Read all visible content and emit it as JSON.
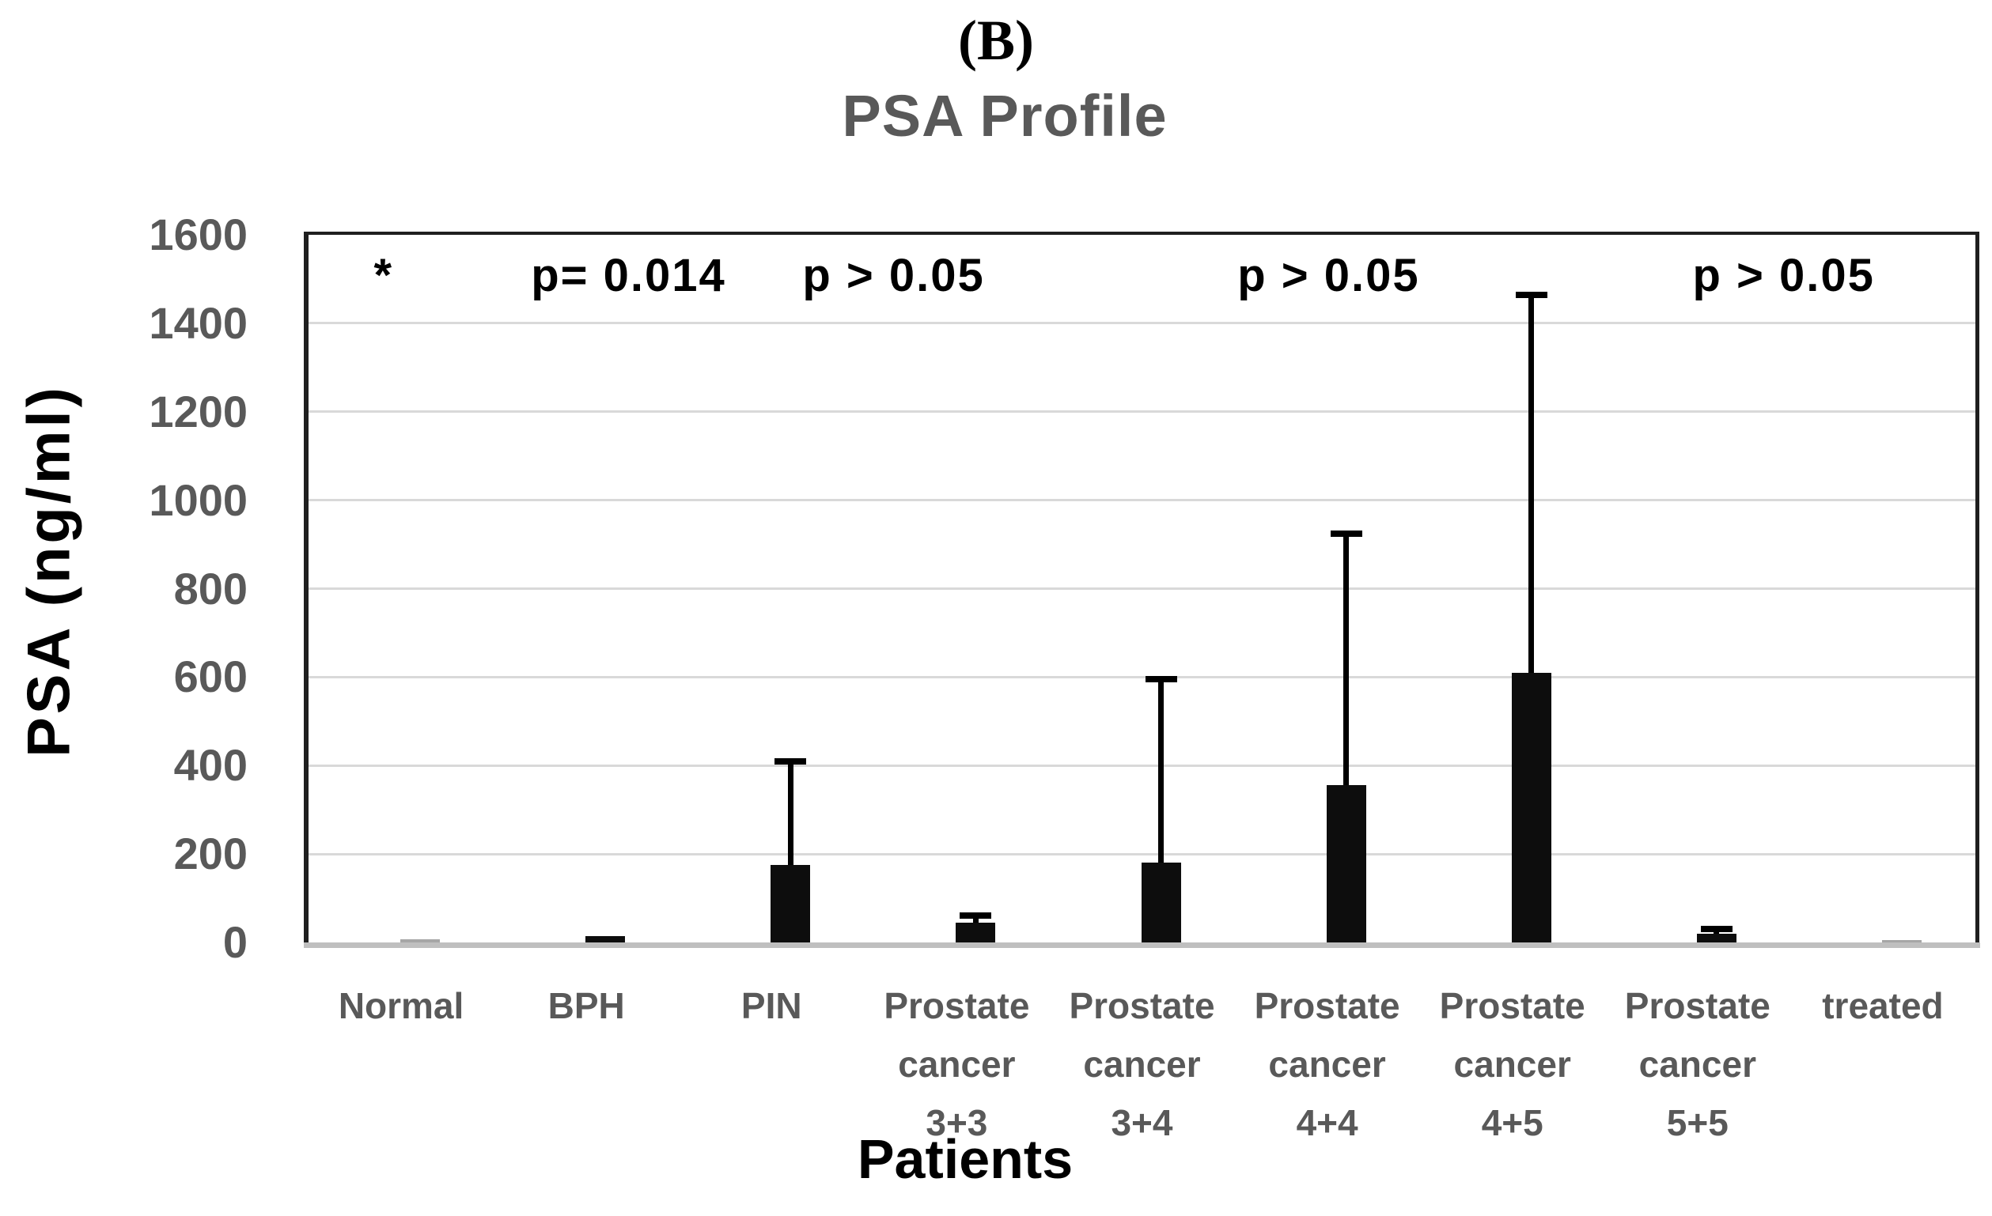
{
  "figure_label": "(B)",
  "chart_data": {
    "type": "bar",
    "title": "PSA Profile",
    "xlabel": "Patients",
    "ylabel": "PSA (ng/ml)",
    "ylim": [
      0,
      1600
    ],
    "ytick_step": 200,
    "grid": true,
    "legend": "none",
    "error_bars": "upper-only",
    "categories": [
      {
        "label_lines": [
          "Normal"
        ],
        "value": 8,
        "error_upper": null,
        "color": "#a6a6a6"
      },
      {
        "label_lines": [
          "BPH"
        ],
        "value": 14,
        "error_upper": null,
        "color": "#0d0d0d"
      },
      {
        "label_lines": [
          "PIN"
        ],
        "value": 175,
        "error_upper": 410,
        "color": "#0d0d0d"
      },
      {
        "label_lines": [
          "Prostate",
          "cancer",
          "3+3"
        ],
        "value": 45,
        "error_upper": 60,
        "color": "#0d0d0d"
      },
      {
        "label_lines": [
          "Prostate",
          "cancer",
          "3+4"
        ],
        "value": 180,
        "error_upper": 595,
        "color": "#0d0d0d"
      },
      {
        "label_lines": [
          "Prostate",
          "cancer",
          "4+4"
        ],
        "value": 355,
        "error_upper": 925,
        "color": "#0d0d0d"
      },
      {
        "label_lines": [
          "Prostate",
          "cancer",
          "4+5"
        ],
        "value": 610,
        "error_upper": 1465,
        "color": "#0d0d0d"
      },
      {
        "label_lines": [
          "Prostate",
          "cancer",
          "5+5"
        ],
        "value": 20,
        "error_upper": 30,
        "color": "#0d0d0d"
      },
      {
        "label_lines": [
          "treated"
        ],
        "value": 5,
        "error_upper": null,
        "color": "#a6a6a6"
      }
    ],
    "annotations": [
      {
        "text": "*",
        "fx": 0.045
      },
      {
        "text": "p= 0.014",
        "fx": 0.192
      },
      {
        "text": "p > 0.05",
        "fx": 0.351
      },
      {
        "text": "p > 0.05",
        "fx": 0.612
      },
      {
        "text": "p > 0.05",
        "fx": 0.885
      }
    ],
    "colors": {
      "bar_default": "#0d0d0d",
      "bar_muted": "#a6a6a6",
      "gridline": "#d9d9d9",
      "axis_line": "#bfbfbf",
      "plot_border": "#1f1f1f",
      "tick_label": "#595959",
      "category_label": "#595959",
      "title": "#595959",
      "annotation": "#000000"
    }
  }
}
